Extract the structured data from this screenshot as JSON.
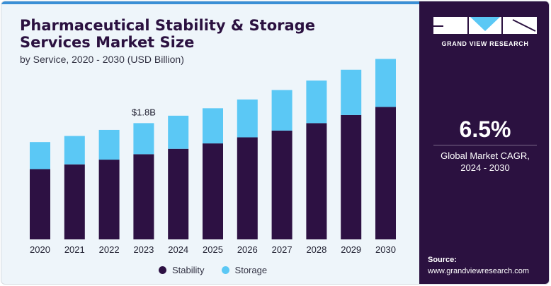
{
  "header": {
    "title": "Pharmaceutical Stability & Storage Services Market Size",
    "subtitle": "by Service, 2020 - 2030 (USD Billion)"
  },
  "brand": {
    "logo_text": "GRAND VIEW RESEARCH",
    "cagr_value": "6.5%",
    "cagr_label": "Global Market CAGR,",
    "cagr_period": "2024 - 2030",
    "source_label": "Source:",
    "source_url": "www.grandviewresearch.com"
  },
  "colors": {
    "stability": "#2d1143",
    "storage": "#5bc8f5",
    "panel": "#2b1140",
    "background": "#eef5fa"
  },
  "legend": [
    "Stability",
    "Storage"
  ],
  "chart_data": {
    "type": "bar",
    "stacked": true,
    "categories": [
      "2020",
      "2021",
      "2022",
      "2023",
      "2024",
      "2025",
      "2026",
      "2027",
      "2028",
      "2029",
      "2030"
    ],
    "series": [
      {
        "name": "Stability",
        "values": [
          1.04,
          1.11,
          1.18,
          1.26,
          1.34,
          1.42,
          1.51,
          1.61,
          1.72,
          1.84,
          1.96
        ]
      },
      {
        "name": "Storage",
        "values": [
          0.4,
          0.42,
          0.44,
          0.46,
          0.49,
          0.52,
          0.56,
          0.6,
          0.63,
          0.67,
          0.71
        ]
      }
    ],
    "annotations": [
      {
        "category": "2023",
        "text": "$1.8B"
      }
    ],
    "ylim": [
      0,
      2.8
    ],
    "grid": false,
    "legend_position": "bottom"
  }
}
